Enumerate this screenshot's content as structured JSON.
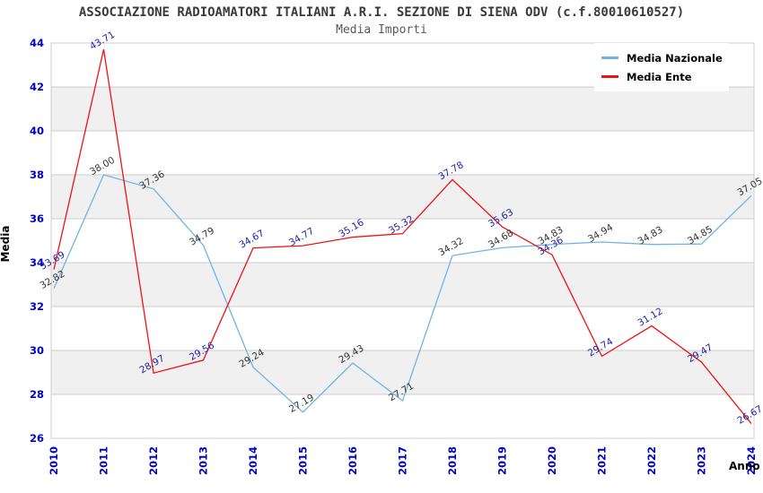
{
  "header": {
    "title": "ASSOCIAZIONE RADIOAMATORI ITALIANI A.R.I. SEZIONE DI SIENA ODV (c.f.80010610527)",
    "subtitle": "Media Importi"
  },
  "chart_data": {
    "type": "line",
    "title": "ASSOCIAZIONE RADIOAMATORI ITALIANI A.R.I. SEZIONE DI SIENA ODV (c.f.80010610527)",
    "subtitle": "Media Importi",
    "xlabel": "Anno",
    "ylabel": "Media",
    "x": [
      2010,
      2011,
      2012,
      2013,
      2014,
      2015,
      2016,
      2017,
      2018,
      2019,
      2020,
      2021,
      2022,
      2023,
      2024
    ],
    "series": [
      {
        "name": "Media Nazionale",
        "color": "#72B2E6",
        "label_color": "#333333",
        "values": [
          32.82,
          38.0,
          37.36,
          34.79,
          29.24,
          27.19,
          29.43,
          27.71,
          34.32,
          34.68,
          34.83,
          34.94,
          34.83,
          34.85,
          37.05
        ]
      },
      {
        "name": "Media Ente",
        "color": "#EE1212",
        "label_color": "#2222AA",
        "values": [
          33.69,
          43.71,
          28.97,
          29.56,
          34.67,
          34.77,
          35.16,
          35.32,
          37.78,
          35.63,
          34.36,
          29.74,
          31.12,
          29.47,
          26.67
        ]
      }
    ],
    "ylim": [
      26,
      44
    ],
    "ytick_step": 2,
    "yticks": [
      26,
      28,
      30,
      32,
      34,
      36,
      38,
      40,
      42,
      44
    ],
    "grid": "horizontal gridlines with alternating gray bands",
    "legend_position": "top-right",
    "style": {
      "tick_label_color": "#0000CC",
      "band_color": "#F0F0F0",
      "gridline_color": "#CCCCCC",
      "plot_border_color": "#CCCCCC",
      "background": "#FFFFFF"
    }
  }
}
